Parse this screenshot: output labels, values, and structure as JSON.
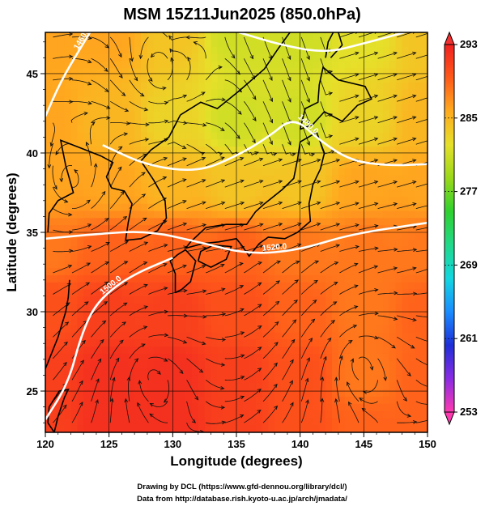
{
  "title": "MSM 15Z11Jun2025 (850.0hPa)",
  "credits": [
    "Drawing by DCL (https://www.gfd-dennou.org/library/dcl/)",
    "Data from http://database.rish.kyoto-u.ac.jp/arch/jmadata/"
  ],
  "chart_data": {
    "type": "heatmap",
    "title": "MSM 15Z11Jun2025 (850.0hPa)",
    "xlabel": "Longitude (degrees)",
    "ylabel": "Latitude  (degrees)",
    "xlim": [
      120,
      150
    ],
    "ylim": [
      22.4,
      47.6
    ],
    "x_ticks": [
      120,
      125,
      130,
      135,
      140,
      145,
      150
    ],
    "y_ticks": [
      25,
      30,
      35,
      40,
      45
    ],
    "grid": true,
    "colorbar": {
      "min": 253,
      "max": 293,
      "tick_labels": [
        293,
        285,
        277,
        269,
        261,
        253
      ],
      "colors": [
        "#ff3ab0",
        "#8a2be2",
        "#1e2fd8",
        "#1a8cff",
        "#13d6e0",
        "#21d98a",
        "#2fd12f",
        "#9ad81a",
        "#e6e02a",
        "#ffab1f",
        "#ff5a1a",
        "#f02020"
      ]
    },
    "contours": [
      {
        "label": "1500.0",
        "points": [
          [
            120,
            23.2
          ],
          [
            121.8,
            25.5
          ],
          [
            122.8,
            28.5
          ],
          [
            124,
            30.6
          ],
          [
            126.5,
            32.2
          ],
          [
            130,
            33.4
          ]
        ]
      },
      {
        "label": "1520.0",
        "points": [
          [
            120,
            34.6
          ],
          [
            124,
            34.9
          ],
          [
            128,
            35.1
          ],
          [
            132,
            34.4
          ],
          [
            136,
            33.6
          ],
          [
            140,
            33.9
          ],
          [
            144,
            34.9
          ],
          [
            150,
            35.6
          ]
        ]
      },
      {
        "label": "1480.0",
        "points": [
          [
            124.5,
            40.5
          ],
          [
            128,
            39.2
          ],
          [
            132,
            38.8
          ],
          [
            135,
            39.8
          ],
          [
            137.5,
            41
          ],
          [
            139.5,
            42.3
          ],
          [
            141.5,
            40.8
          ],
          [
            144,
            39.5
          ],
          [
            147,
            39.2
          ],
          [
            150,
            39.3
          ]
        ]
      },
      {
        "label": "1460.0",
        "points": [
          [
            120,
            42.3
          ],
          [
            121.2,
            44.5
          ],
          [
            122.6,
            46.4
          ],
          [
            123.5,
            47.6
          ]
        ]
      },
      {
        "label": "",
        "points": [
          [
            135.2,
            47.6
          ],
          [
            138.5,
            46.8
          ],
          [
            142,
            46.3
          ],
          [
            145,
            46.9
          ],
          [
            148.2,
            47.6
          ]
        ]
      }
    ],
    "highs": [
      {
        "lon": 144.6,
        "lat": 27.0
      },
      {
        "lon": 128.2,
        "lat": 26.2
      }
    ],
    "lows": [
      {
        "lon": 122.2,
        "lat": 37.8
      },
      {
        "lon": 129.2,
        "lat": 44.8
      }
    ],
    "temperature_anchors": [
      {
        "lon": 120,
        "lat": 22.4,
        "t": 291
      },
      {
        "lon": 125,
        "lat": 22.4,
        "t": 292
      },
      {
        "lon": 130,
        "lat": 22.4,
        "t": 292
      },
      {
        "lon": 135,
        "lat": 22.4,
        "t": 291
      },
      {
        "lon": 140,
        "lat": 22.4,
        "t": 290
      },
      {
        "lon": 145,
        "lat": 22.4,
        "t": 289
      },
      {
        "lon": 150,
        "lat": 22.4,
        "t": 289
      },
      {
        "lon": 120,
        "lat": 26,
        "t": 291
      },
      {
        "lon": 125,
        "lat": 26,
        "t": 292
      },
      {
        "lon": 130,
        "lat": 26,
        "t": 292
      },
      {
        "lon": 135,
        "lat": 26,
        "t": 291
      },
      {
        "lon": 140,
        "lat": 26,
        "t": 290
      },
      {
        "lon": 145,
        "lat": 26,
        "t": 288
      },
      {
        "lon": 150,
        "lat": 26,
        "t": 289
      },
      {
        "lon": 120,
        "lat": 30,
        "t": 290
      },
      {
        "lon": 125,
        "lat": 30,
        "t": 291
      },
      {
        "lon": 130,
        "lat": 30,
        "t": 291
      },
      {
        "lon": 135,
        "lat": 30,
        "t": 290
      },
      {
        "lon": 140,
        "lat": 30,
        "t": 289
      },
      {
        "lon": 145,
        "lat": 30,
        "t": 288
      },
      {
        "lon": 150,
        "lat": 30,
        "t": 289
      },
      {
        "lon": 120,
        "lat": 34,
        "t": 288
      },
      {
        "lon": 125,
        "lat": 34,
        "t": 289
      },
      {
        "lon": 130,
        "lat": 34,
        "t": 289
      },
      {
        "lon": 135,
        "lat": 34,
        "t": 289
      },
      {
        "lon": 140,
        "lat": 34,
        "t": 288
      },
      {
        "lon": 145,
        "lat": 34,
        "t": 288
      },
      {
        "lon": 150,
        "lat": 34,
        "t": 288
      },
      {
        "lon": 120,
        "lat": 38,
        "t": 286
      },
      {
        "lon": 125,
        "lat": 38,
        "t": 286
      },
      {
        "lon": 130,
        "lat": 38,
        "t": 285
      },
      {
        "lon": 135,
        "lat": 38,
        "t": 284
      },
      {
        "lon": 140,
        "lat": 38,
        "t": 284
      },
      {
        "lon": 145,
        "lat": 38,
        "t": 286
      },
      {
        "lon": 150,
        "lat": 38,
        "t": 286
      },
      {
        "lon": 120,
        "lat": 42,
        "t": 286
      },
      {
        "lon": 125,
        "lat": 42,
        "t": 285
      },
      {
        "lon": 130,
        "lat": 42,
        "t": 283
      },
      {
        "lon": 135,
        "lat": 42,
        "t": 281
      },
      {
        "lon": 140,
        "lat": 42,
        "t": 281
      },
      {
        "lon": 145,
        "lat": 42,
        "t": 283
      },
      {
        "lon": 150,
        "lat": 42,
        "t": 285
      },
      {
        "lon": 120,
        "lat": 47.6,
        "t": 286
      },
      {
        "lon": 125,
        "lat": 47.6,
        "t": 286
      },
      {
        "lon": 130,
        "lat": 47.6,
        "t": 284
      },
      {
        "lon": 135,
        "lat": 47.6,
        "t": 281
      },
      {
        "lon": 140,
        "lat": 47.6,
        "t": 281
      },
      {
        "lon": 145,
        "lat": 47.6,
        "t": 282
      },
      {
        "lon": 150,
        "lat": 47.6,
        "t": 284
      }
    ]
  }
}
